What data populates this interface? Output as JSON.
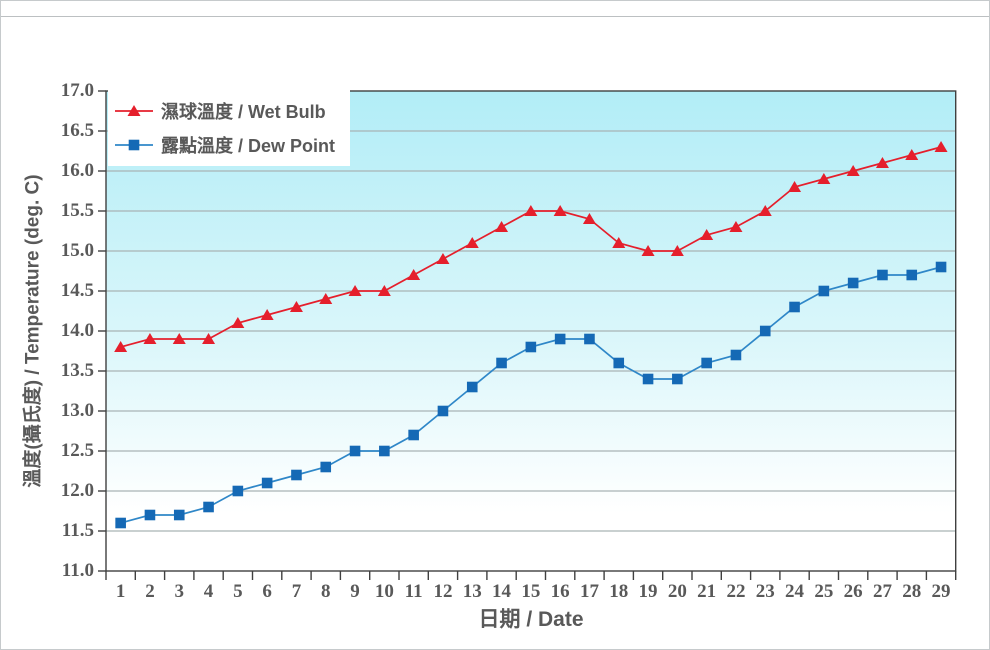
{
  "chart_data": {
    "type": "line",
    "title": "",
    "xlabel": "日期 / Date",
    "ylabel": "溫度(攝氏度) / Temperature (deg. C)",
    "x": [
      1,
      2,
      3,
      4,
      5,
      6,
      7,
      8,
      9,
      10,
      11,
      12,
      13,
      14,
      15,
      16,
      17,
      18,
      19,
      20,
      21,
      22,
      23,
      24,
      25,
      26,
      27,
      28,
      29
    ],
    "x_tick_labels": [
      "1",
      "2",
      "3",
      "4",
      "5",
      "6",
      "7",
      "8",
      "9",
      "10",
      "11",
      "12",
      "13",
      "14",
      "15",
      "16",
      "17",
      "18",
      "19",
      "20",
      "21",
      "22",
      "23",
      "24",
      "25",
      "26",
      "27",
      "28",
      "29"
    ],
    "ylim": [
      11.0,
      17.0
    ],
    "ytick_step": 0.5,
    "y_tick_labels": [
      "17.0",
      "16.5",
      "16.0",
      "15.5",
      "15.0",
      "14.5",
      "14.0",
      "13.5",
      "13.0",
      "12.5",
      "12.0",
      "11.5",
      "11.0"
    ],
    "grid": "horizontal",
    "legend_position": "top-left-inside",
    "series": [
      {
        "name": "濕球溫度 / Wet Bulb",
        "marker": "triangle",
        "color": "#e51f2c",
        "line_color": "#e51f2c",
        "values": [
          13.8,
          13.9,
          13.9,
          13.9,
          14.1,
          14.2,
          14.3,
          14.4,
          14.5,
          14.5,
          14.7,
          14.9,
          15.1,
          15.3,
          15.5,
          15.5,
          15.4,
          15.1,
          15.0,
          15.0,
          15.2,
          15.3,
          15.5,
          15.8,
          15.9,
          16.0,
          16.1,
          16.2,
          16.3
        ]
      },
      {
        "name": "露點溫度 / Dew Point",
        "marker": "square",
        "color": "#1569b5",
        "line_color": "#2f87c8",
        "values": [
          11.6,
          11.7,
          11.7,
          11.8,
          12.0,
          12.1,
          12.2,
          12.3,
          12.5,
          12.5,
          12.7,
          13.0,
          13.3,
          13.6,
          13.8,
          13.9,
          13.9,
          13.6,
          13.4,
          13.4,
          13.6,
          13.7,
          14.0,
          14.3,
          14.5,
          14.6,
          14.7,
          14.7,
          14.8
        ]
      }
    ]
  },
  "style": {
    "plot_bg_top": "#b2edf7",
    "plot_bg_mid": "#d9f6fa",
    "plot_bg_bottom": "#ffffff",
    "gridline_color": "#a9b3b5",
    "axis_color": "#404040",
    "label_color": "#595959",
    "legend_bg": "#ffffff"
  }
}
